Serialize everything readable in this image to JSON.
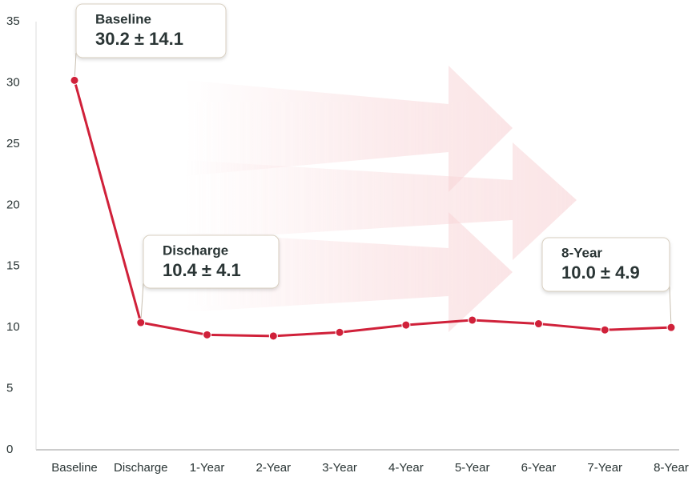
{
  "chart_data": {
    "type": "line",
    "categories": [
      "Baseline",
      "Discharge",
      "1-Year",
      "2-Year",
      "3-Year",
      "4-Year",
      "5-Year",
      "6-Year",
      "7-Year",
      "8-Year"
    ],
    "series": [
      {
        "color": "#d0213a",
        "values": [
          30.2,
          10.4,
          9.4,
          9.3,
          9.6,
          10.2,
          10.6,
          10.3,
          9.8,
          10.0
        ]
      }
    ],
    "ylim": [
      0,
      35
    ],
    "yticks": [
      0,
      5,
      10,
      15,
      20,
      25,
      30,
      35
    ],
    "annotations": [
      {
        "title": "Baseline",
        "text": "30.2 ± 14.1"
      },
      {
        "title": "Discharge",
        "text": "10.4 ± 4.1"
      },
      {
        "title": "8-Year",
        "text": "10.0 ± 4.9"
      }
    ]
  }
}
